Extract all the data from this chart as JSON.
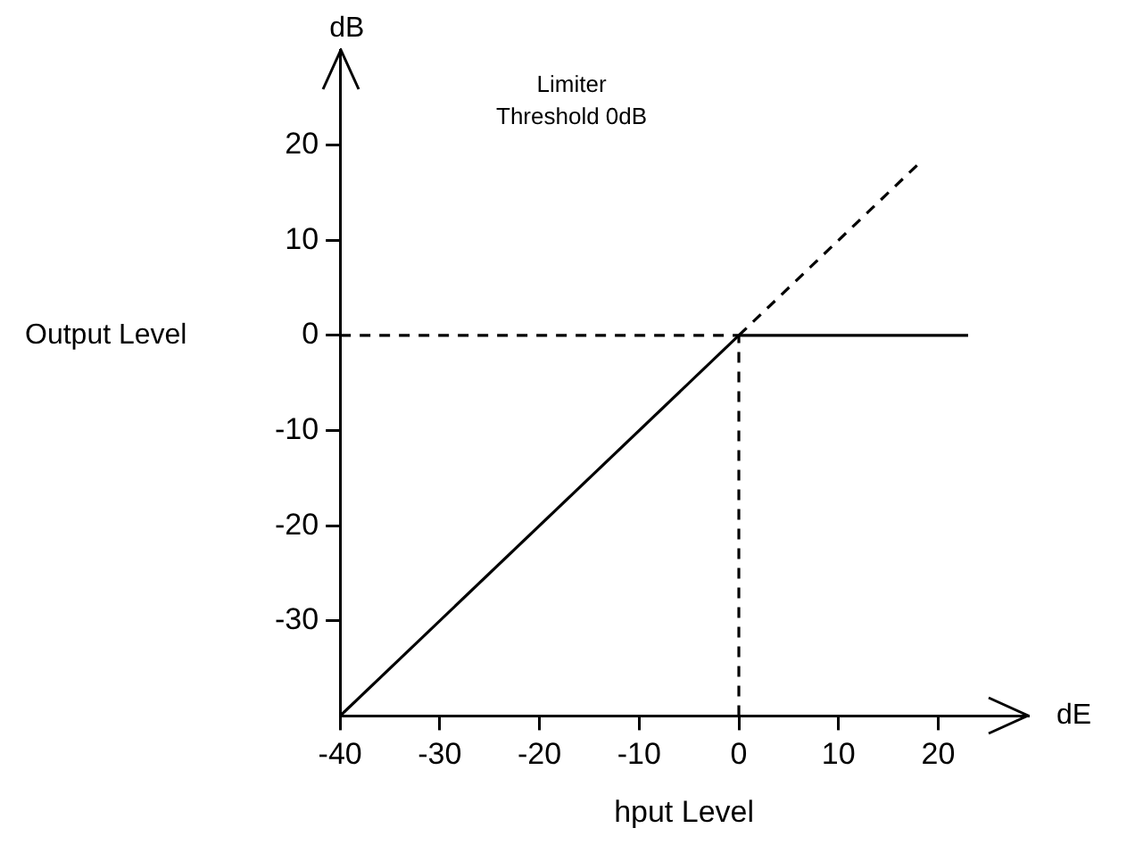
{
  "chart_data": {
    "type": "line",
    "xlabel": "hput Level",
    "ylabel": "Output Level",
    "annotations": [
      "dB",
      "dE",
      "Limiter\nThreshold 0dB"
    ],
    "xlim": [
      -40,
      29
    ],
    "xticks": [
      -40,
      -30,
      -20,
      -10,
      0,
      10,
      20
    ],
    "ylim": [
      -40,
      30
    ],
    "yticks": [
      -30,
      -20,
      -10,
      0,
      10,
      20
    ],
    "grid": false,
    "legend": false,
    "marker": "none",
    "series": [
      {
        "color": "#000000",
        "x": [
          -40,
          0,
          23
        ],
        "values": [
          -40,
          0,
          0
        ],
        "line_style": "solid"
      },
      {
        "color": "#000000",
        "x": [
          0,
          18
        ],
        "values": [
          0,
          18
        ],
        "line_style": "dashed"
      },
      {
        "color": "#000000",
        "x": [
          -40,
          0
        ],
        "values": [
          0,
          0
        ],
        "line_style": "dashed"
      },
      {
        "color": "#000000",
        "x": [
          0,
          0
        ],
        "values": [
          -40,
          0
        ],
        "line_style": "dashed"
      }
    ]
  }
}
